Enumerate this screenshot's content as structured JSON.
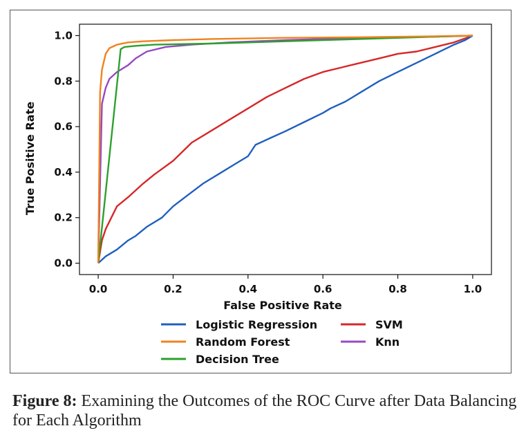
{
  "caption": {
    "label": "Figure 8:",
    "text": "Examining the Outcomes of the ROC Curve after Data Balancing for Each Algorithm"
  },
  "chart_data": {
    "type": "line",
    "title": "",
    "xlabel": "False Positive Rate",
    "ylabel": "True Positive Rate",
    "xlim": [
      -0.05,
      1.05
    ],
    "ylim": [
      -0.05,
      1.05
    ],
    "xticks": [
      "0.0",
      "0.2",
      "0.4",
      "0.6",
      "0.8",
      "1.0"
    ],
    "yticks": [
      "0.0",
      "0.2",
      "0.4",
      "0.6",
      "0.8",
      "1.0"
    ],
    "grid": false,
    "legend_position": "bottom",
    "series": [
      {
        "name": "Logistic Regression",
        "color": "#1f5fbf",
        "x": [
          0,
          0.02,
          0.05,
          0.08,
          0.1,
          0.13,
          0.17,
          0.2,
          0.24,
          0.28,
          0.32,
          0.36,
          0.4,
          0.42,
          0.46,
          0.5,
          0.55,
          0.6,
          0.62,
          0.66,
          0.7,
          0.75,
          0.8,
          0.85,
          0.9,
          0.95,
          0.98,
          1.0
        ],
        "y": [
          0,
          0.03,
          0.06,
          0.1,
          0.12,
          0.16,
          0.2,
          0.25,
          0.3,
          0.35,
          0.39,
          0.43,
          0.47,
          0.52,
          0.55,
          0.58,
          0.62,
          0.66,
          0.68,
          0.71,
          0.75,
          0.8,
          0.84,
          0.88,
          0.92,
          0.96,
          0.98,
          1.0
        ]
      },
      {
        "name": "Random Forest",
        "color": "#f0821e",
        "x": [
          0,
          0.005,
          0.01,
          0.02,
          0.03,
          0.05,
          0.08,
          0.12,
          0.2,
          0.3,
          0.5,
          0.7,
          0.9,
          1.0
        ],
        "y": [
          0,
          0.75,
          0.85,
          0.92,
          0.945,
          0.96,
          0.97,
          0.975,
          0.98,
          0.985,
          0.99,
          0.993,
          0.997,
          1.0
        ]
      },
      {
        "name": "Decision Tree",
        "color": "#2ca02c",
        "x": [
          0,
          0.06,
          0.07,
          0.1,
          0.15,
          0.3,
          0.5,
          0.7,
          0.9,
          1.0
        ],
        "y": [
          0,
          0.94,
          0.95,
          0.955,
          0.96,
          0.965,
          0.975,
          0.985,
          0.995,
          1.0
        ]
      },
      {
        "name": "SVM",
        "color": "#d62728",
        "x": [
          0,
          0.01,
          0.02,
          0.05,
          0.08,
          0.12,
          0.15,
          0.2,
          0.25,
          0.3,
          0.35,
          0.4,
          0.45,
          0.5,
          0.55,
          0.6,
          0.65,
          0.7,
          0.75,
          0.8,
          0.85,
          0.9,
          0.95,
          1.0
        ],
        "y": [
          0,
          0.1,
          0.15,
          0.25,
          0.29,
          0.35,
          0.39,
          0.45,
          0.53,
          0.58,
          0.63,
          0.68,
          0.73,
          0.77,
          0.81,
          0.84,
          0.86,
          0.88,
          0.9,
          0.92,
          0.93,
          0.95,
          0.97,
          1.0
        ]
      },
      {
        "name": "Knn",
        "color": "#9748c4",
        "x": [
          0,
          0.01,
          0.02,
          0.03,
          0.05,
          0.08,
          0.1,
          0.13,
          0.18,
          0.25,
          0.35,
          0.5,
          0.7,
          0.9,
          1.0
        ],
        "y": [
          0,
          0.7,
          0.77,
          0.81,
          0.84,
          0.87,
          0.9,
          0.93,
          0.95,
          0.96,
          0.97,
          0.98,
          0.99,
          0.995,
          1.0
        ]
      }
    ]
  }
}
